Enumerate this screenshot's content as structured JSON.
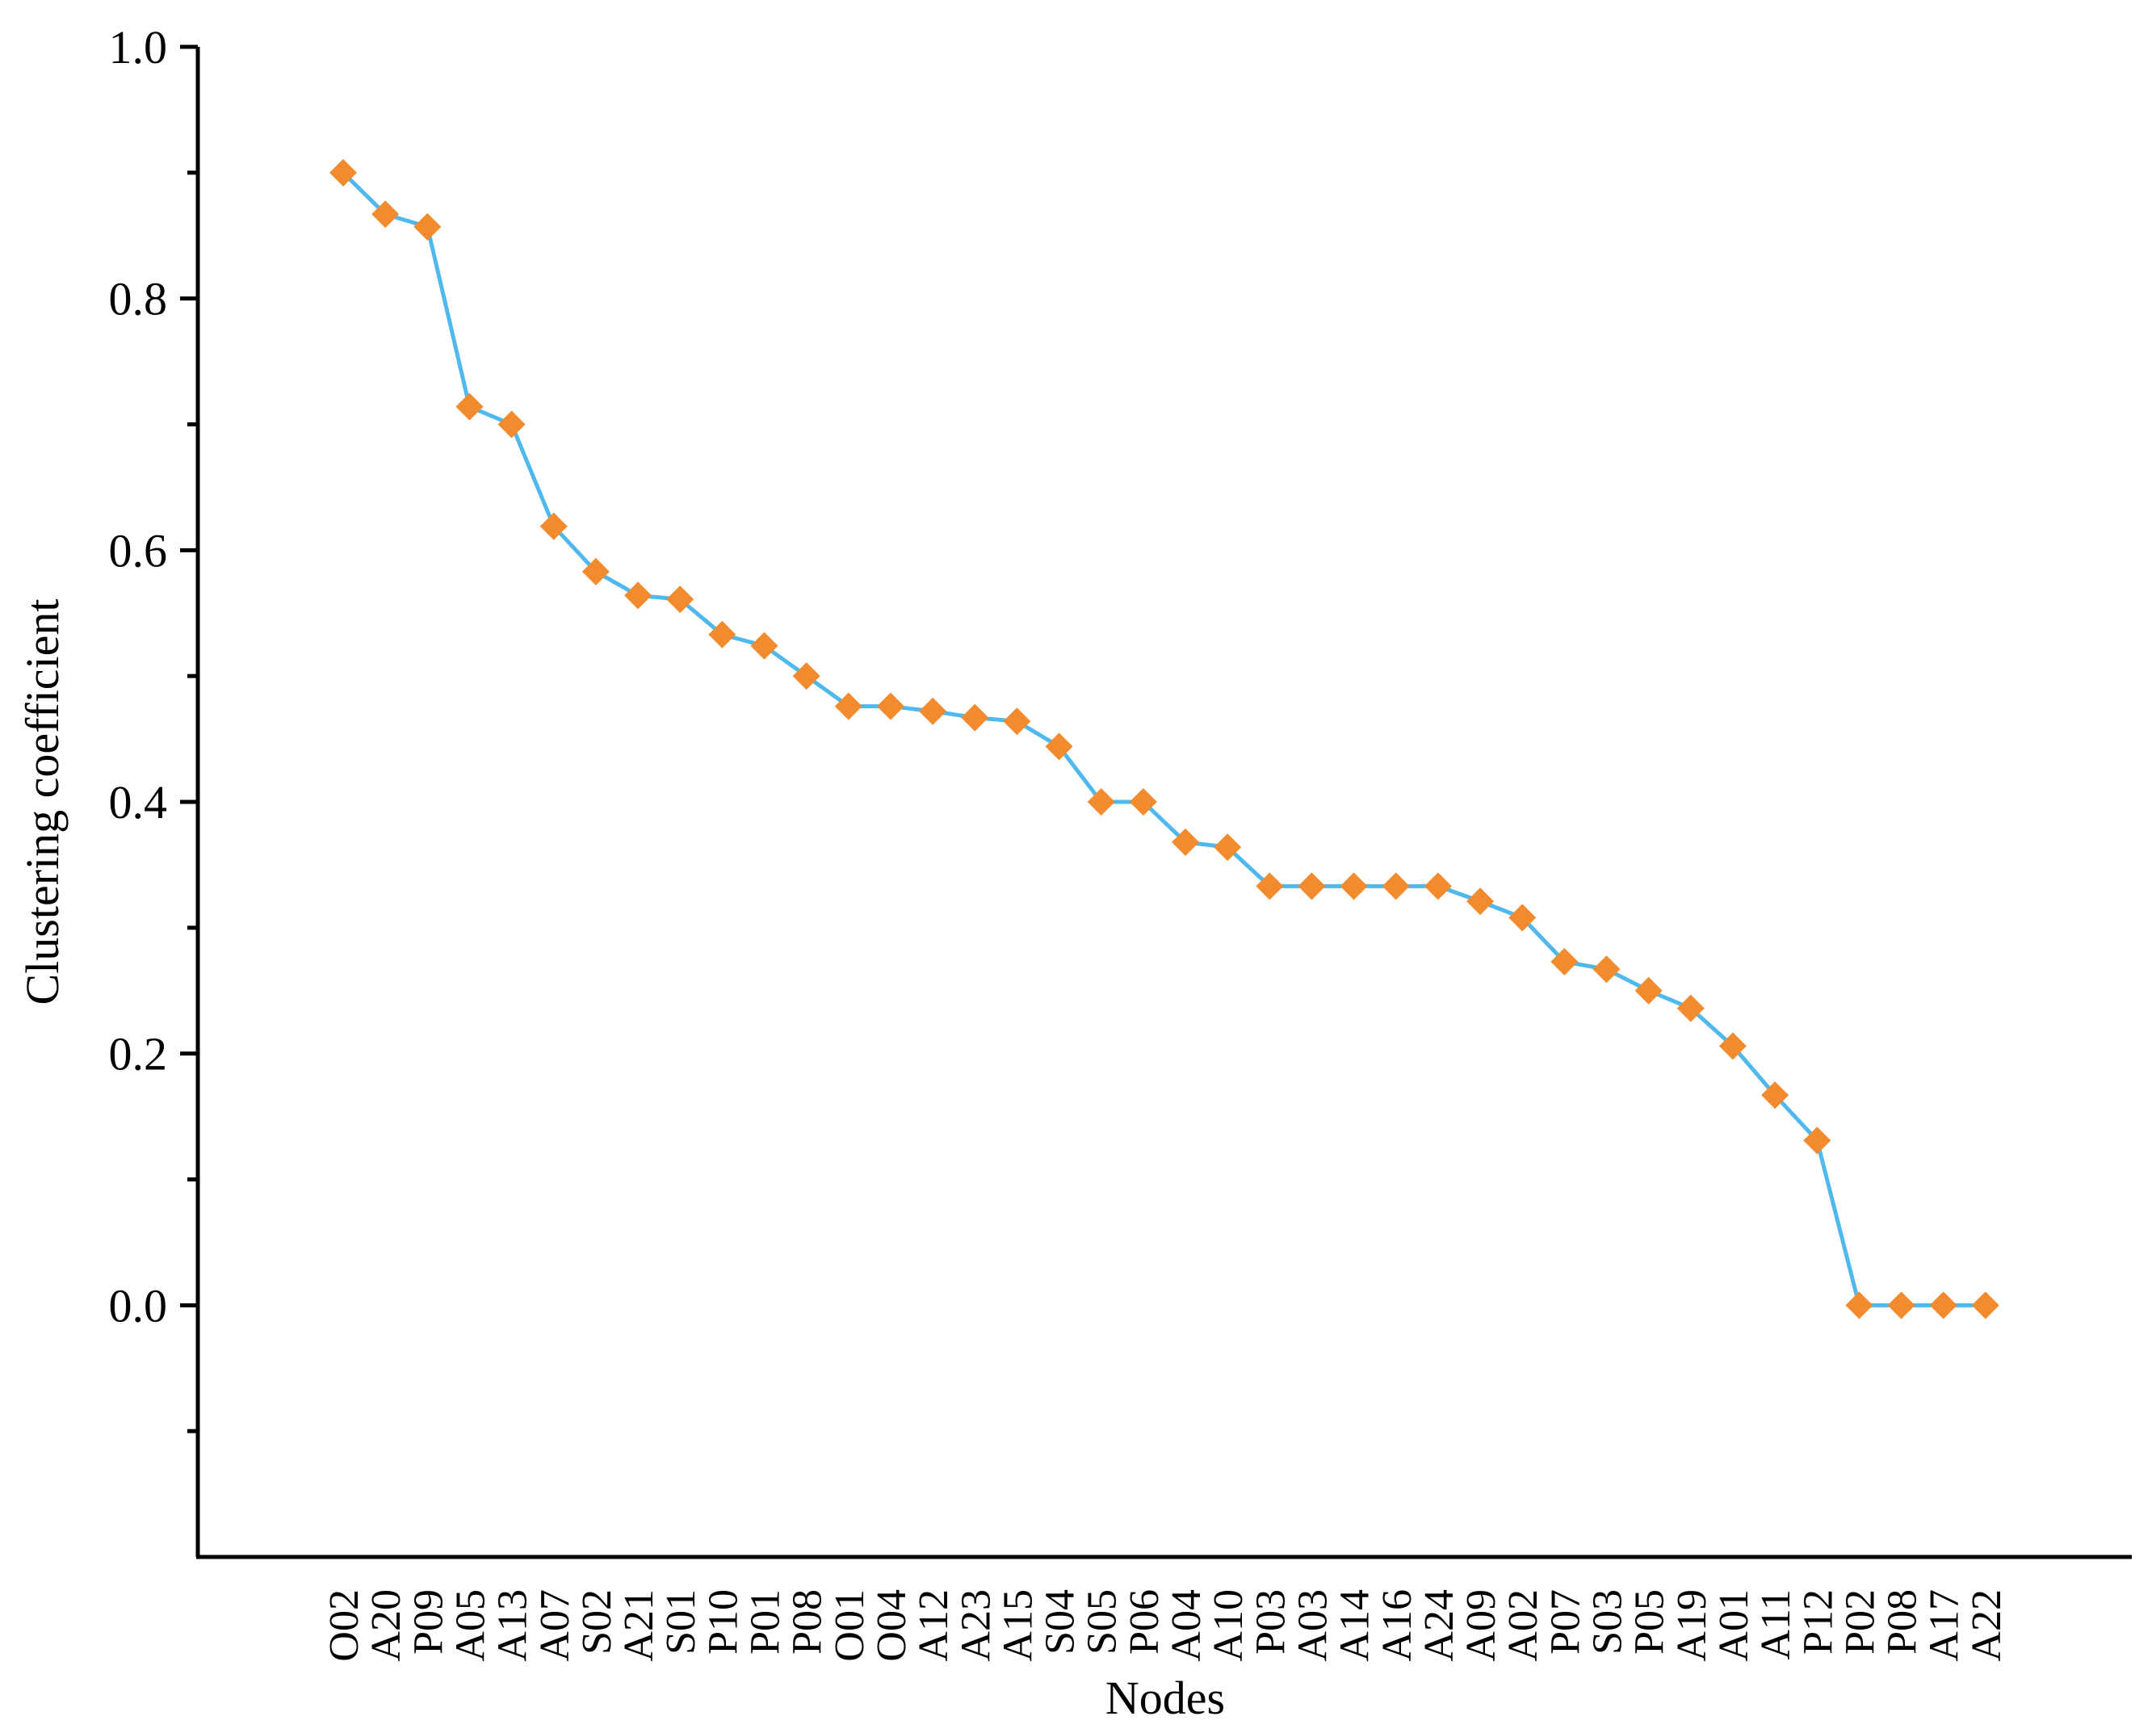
{
  "chart_data": {
    "type": "line",
    "xlabel": "Nodes",
    "ylabel": "Clustering coefficient",
    "ylim": [
      -0.2,
      1.0
    ],
    "yticks": [
      0.0,
      0.2,
      0.4,
      0.6,
      0.8,
      1.0
    ],
    "ytick_labels": [
      "0.0",
      "0.2",
      "0.4",
      "0.6",
      "0.8",
      "1.0"
    ],
    "grid": false,
    "categories": [
      "O02",
      "A20",
      "P09",
      "A05",
      "A13",
      "A07",
      "S02",
      "A21",
      "S01",
      "P10",
      "P01",
      "P08",
      "O01",
      "O04",
      "A12",
      "A23",
      "A15",
      "S04",
      "S05",
      "P06",
      "A04",
      "A10",
      "P03",
      "A03",
      "A14",
      "A16",
      "A24",
      "A09",
      "A02",
      "P07",
      "S03",
      "P05",
      "A19",
      "A01",
      "A11",
      "P12",
      "P02",
      "P08",
      "A17",
      "A22"
    ],
    "series": [
      {
        "values": [
          0.9,
          0.867,
          0.857,
          0.714,
          0.7,
          0.619,
          0.583,
          0.564,
          0.561,
          0.533,
          0.524,
          0.5,
          0.476,
          0.476,
          0.472,
          0.467,
          0.464,
          0.444,
          0.4,
          0.4,
          0.368,
          0.364,
          0.333,
          0.333,
          0.333,
          0.333,
          0.333,
          0.321,
          0.308,
          0.273,
          0.267,
          0.25,
          0.236,
          0.206,
          0.167,
          0.131,
          0.0,
          0.0,
          0.0,
          0.0
        ],
        "line_color": "#4FB8EC",
        "marker_color": "#F28A2E",
        "marker": "diamond"
      }
    ]
  }
}
